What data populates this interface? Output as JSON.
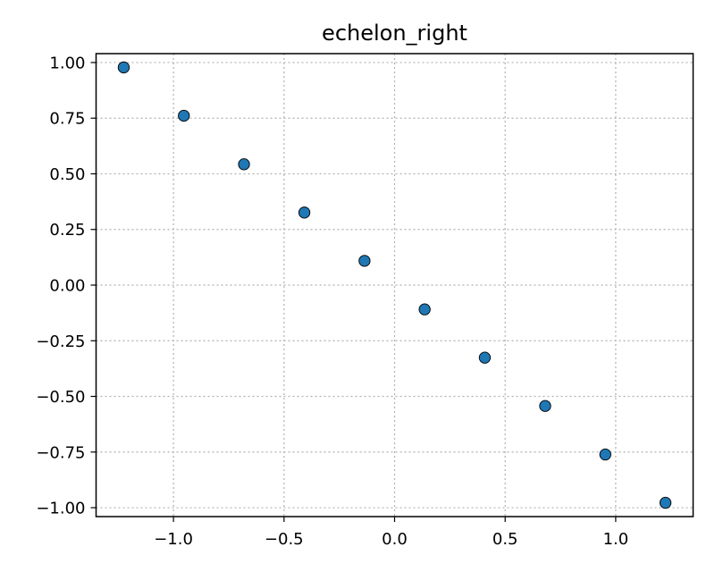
{
  "chart_data": {
    "type": "scatter",
    "title": "echelon_right",
    "xlabel": "",
    "ylabel": "",
    "xlim": [
      -1.35,
      1.35
    ],
    "ylim": [
      -1.04,
      1.04
    ],
    "xticks": [
      -1.0,
      -0.5,
      0.0,
      0.5,
      1.0
    ],
    "xtick_labels": [
      "−1.0",
      "−0.5",
      "0.0",
      "0.5",
      "1.0"
    ],
    "yticks": [
      1.0,
      0.75,
      0.5,
      0.25,
      0.0,
      -0.25,
      -0.5,
      -0.75,
      -1.0
    ],
    "ytick_labels": [
      "1.00",
      "0.75",
      "0.50",
      "0.25",
      "0.00",
      "−0.25",
      "−0.50",
      "−0.75",
      "−1.00"
    ],
    "grid": true,
    "series": [
      {
        "x": [
          -1.225,
          -0.953,
          -0.681,
          -0.408,
          -0.136,
          0.136,
          0.408,
          0.681,
          0.953,
          1.225
        ],
        "y": [
          0.978,
          0.761,
          0.543,
          0.326,
          0.109,
          -0.109,
          -0.326,
          -0.543,
          -0.761,
          -0.978
        ],
        "color": "#1f77b4"
      }
    ]
  }
}
